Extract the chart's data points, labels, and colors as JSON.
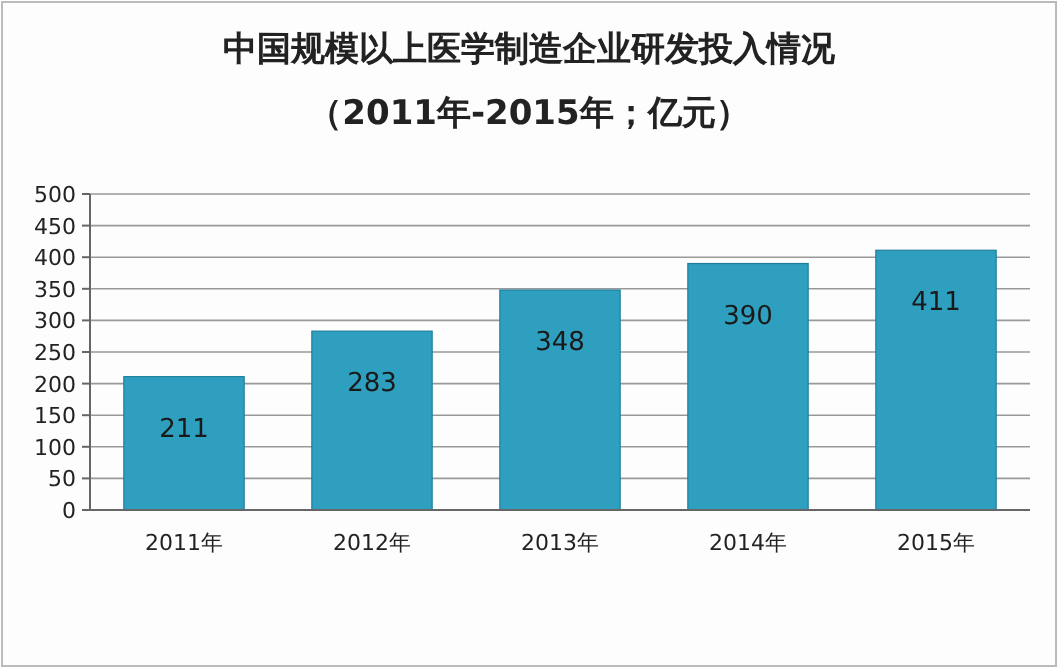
{
  "chart_data": {
    "type": "bar",
    "title": "中国规模以上医学制造企业研发投入情况",
    "subtitle": "（2011年-2015年；亿元）",
    "categories": [
      "2011年",
      "2012年",
      "2013年",
      "2014年",
      "2015年"
    ],
    "values": [
      211,
      283,
      348,
      390,
      411
    ],
    "color": "#2f9fc0",
    "ylim": [
      0,
      500
    ],
    "yticks": [
      0,
      50,
      100,
      150,
      200,
      250,
      300,
      350,
      400,
      450,
      500
    ],
    "grid": "y",
    "data_labels": true
  }
}
